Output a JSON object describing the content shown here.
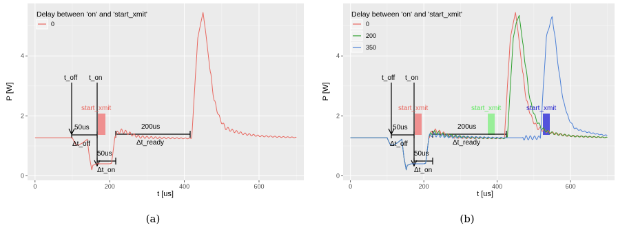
{
  "chart_data": [
    {
      "type": "line",
      "caption": "(a)",
      "xlabel": "t [us]",
      "ylabel": "P [W]",
      "xlim": [
        -20,
        720
      ],
      "ylim": [
        -0.15,
        5.75
      ],
      "x_ticks": [
        0,
        200,
        400,
        600
      ],
      "y_ticks": [
        0,
        2,
        4
      ],
      "grid": true,
      "legend": {
        "title": "Delay between 'on' and 'start_xmit'",
        "position": "top-left",
        "entries": [
          "0"
        ]
      },
      "series": [
        {
          "name": "0",
          "color": "#e8675f",
          "points": [
            [
              0,
              1.27
            ],
            [
              95,
              1.27
            ],
            [
              100,
              1.27
            ],
            [
              108,
              1.05
            ],
            [
              115,
              1.02
            ],
            [
              128,
              1.1
            ],
            [
              140,
              1.22
            ],
            [
              146,
              0.6
            ],
            [
              152,
              0.2
            ],
            [
              155,
              0.35
            ],
            [
              165,
              0.4
            ],
            [
              200,
              0.4
            ],
            [
              205,
              0.42
            ],
            [
              214,
              1.3
            ],
            [
              222,
              1.45
            ],
            [
              232,
              1.5
            ],
            [
              245,
              1.45
            ],
            [
              260,
              1.38
            ],
            [
              280,
              1.3
            ],
            [
              320,
              1.27
            ],
            [
              400,
              1.25
            ],
            [
              418,
              1.25
            ],
            [
              420,
              1.3
            ],
            [
              428,
              3.0
            ],
            [
              436,
              4.6
            ],
            [
              444,
              5.1
            ],
            [
              450,
              5.45
            ],
            [
              458,
              4.7
            ],
            [
              468,
              3.6
            ],
            [
              480,
              2.5
            ],
            [
              495,
              1.9
            ],
            [
              510,
              1.6
            ],
            [
              530,
              1.5
            ],
            [
              560,
              1.4
            ],
            [
              600,
              1.33
            ],
            [
              650,
              1.3
            ],
            [
              700,
              1.28
            ]
          ]
        }
      ],
      "annotations": [
        {
          "text": "t_off"
        },
        {
          "text": "t_on"
        },
        {
          "text": "start_xmit"
        },
        {
          "text": "50us"
        },
        {
          "text": "Δt_off"
        },
        {
          "text": "50us"
        },
        {
          "text": "Δt_on"
        },
        {
          "text": "200us"
        },
        {
          "text": "Δt_ready"
        }
      ]
    },
    {
      "type": "line",
      "caption": "(b)",
      "xlabel": "t [us]",
      "ylabel": "P [W]",
      "xlim": [
        -20,
        720
      ],
      "ylim": [
        -0.15,
        5.75
      ],
      "x_ticks": [
        0,
        200,
        400,
        600
      ],
      "y_ticks": [
        0,
        2,
        4
      ],
      "grid": true,
      "legend": {
        "title": "Delay between 'on' and 'start_xmit'",
        "position": "top-left",
        "entries": [
          "0",
          "200",
          "350"
        ]
      },
      "series": [
        {
          "name": "0",
          "color": "#e8675f",
          "points": [
            [
              0,
              1.27
            ],
            [
              95,
              1.27
            ],
            [
              100,
              1.27
            ],
            [
              108,
              1.05
            ],
            [
              115,
              1.02
            ],
            [
              128,
              1.1
            ],
            [
              140,
              1.22
            ],
            [
              146,
              0.6
            ],
            [
              152,
              0.2
            ],
            [
              155,
              0.35
            ],
            [
              165,
              0.4
            ],
            [
              200,
              0.4
            ],
            [
              205,
              0.42
            ],
            [
              214,
              1.3
            ],
            [
              222,
              1.45
            ],
            [
              232,
              1.5
            ],
            [
              245,
              1.45
            ],
            [
              260,
              1.38
            ],
            [
              280,
              1.3
            ],
            [
              320,
              1.27
            ],
            [
              400,
              1.25
            ],
            [
              418,
              1.25
            ],
            [
              420,
              1.3
            ],
            [
              428,
              3.0
            ],
            [
              436,
              4.6
            ],
            [
              444,
              5.1
            ],
            [
              450,
              5.45
            ],
            [
              458,
              4.7
            ],
            [
              468,
              3.6
            ],
            [
              480,
              2.5
            ],
            [
              495,
              1.9
            ],
            [
              510,
              1.6
            ],
            [
              530,
              1.5
            ],
            [
              560,
              1.4
            ],
            [
              600,
              1.33
            ],
            [
              650,
              1.3
            ],
            [
              700,
              1.28
            ]
          ]
        },
        {
          "name": "200",
          "color": "#2ca02c",
          "points": [
            [
              0,
              1.27
            ],
            [
              95,
              1.27
            ],
            [
              100,
              1.27
            ],
            [
              108,
              1.05
            ],
            [
              115,
              1.02
            ],
            [
              128,
              1.1
            ],
            [
              140,
              1.22
            ],
            [
              146,
              0.6
            ],
            [
              152,
              0.2
            ],
            [
              155,
              0.35
            ],
            [
              165,
              0.4
            ],
            [
              200,
              0.4
            ],
            [
              205,
              0.42
            ],
            [
              214,
              1.3
            ],
            [
              222,
              1.42
            ],
            [
              232,
              1.45
            ],
            [
              260,
              1.35
            ],
            [
              320,
              1.28
            ],
            [
              420,
              1.25
            ],
            [
              428,
              1.3
            ],
            [
              436,
              3.0
            ],
            [
              444,
              4.6
            ],
            [
              452,
              5.1
            ],
            [
              460,
              5.35
            ],
            [
              468,
              4.6
            ],
            [
              478,
              3.6
            ],
            [
              490,
              2.5
            ],
            [
              505,
              1.9
            ],
            [
              520,
              1.6
            ],
            [
              540,
              1.45
            ],
            [
              570,
              1.38
            ],
            [
              610,
              1.32
            ],
            [
              660,
              1.3
            ],
            [
              700,
              1.28
            ]
          ]
        },
        {
          "name": "350",
          "color": "#4a7fd6",
          "points": [
            [
              0,
              1.27
            ],
            [
              95,
              1.27
            ],
            [
              100,
              1.27
            ],
            [
              108,
              1.05
            ],
            [
              115,
              1.02
            ],
            [
              128,
              1.1
            ],
            [
              140,
              1.22
            ],
            [
              146,
              0.6
            ],
            [
              152,
              0.2
            ],
            [
              155,
              0.35
            ],
            [
              165,
              0.4
            ],
            [
              200,
              0.4
            ],
            [
              205,
              0.42
            ],
            [
              214,
              1.3
            ],
            [
              222,
              1.38
            ],
            [
              240,
              1.35
            ],
            [
              280,
              1.3
            ],
            [
              400,
              1.27
            ],
            [
              500,
              1.27
            ],
            [
              512,
              1.27
            ],
            [
              518,
              1.3
            ],
            [
              526,
              3.0
            ],
            [
              534,
              4.6
            ],
            [
              542,
              5.0
            ],
            [
              550,
              5.3
            ],
            [
              558,
              4.6
            ],
            [
              568,
              3.5
            ],
            [
              580,
              2.5
            ],
            [
              595,
              1.9
            ],
            [
              610,
              1.6
            ],
            [
              630,
              1.5
            ],
            [
              660,
              1.42
            ],
            [
              690,
              1.36
            ],
            [
              700,
              1.35
            ]
          ]
        }
      ],
      "annotations": [
        {
          "text": "t_off"
        },
        {
          "text": "t_on"
        },
        {
          "text": "start_xmit",
          "color": "#e8675f"
        },
        {
          "text": "start_xmit",
          "color": "#5ee85e"
        },
        {
          "text": "start_xmit",
          "color": "#1a1acc"
        },
        {
          "text": "50us"
        },
        {
          "text": "Δt_off"
        },
        {
          "text": "50us"
        },
        {
          "text": "Δt_on"
        },
        {
          "text": "200us"
        },
        {
          "text": "Δt_ready"
        }
      ]
    }
  ]
}
